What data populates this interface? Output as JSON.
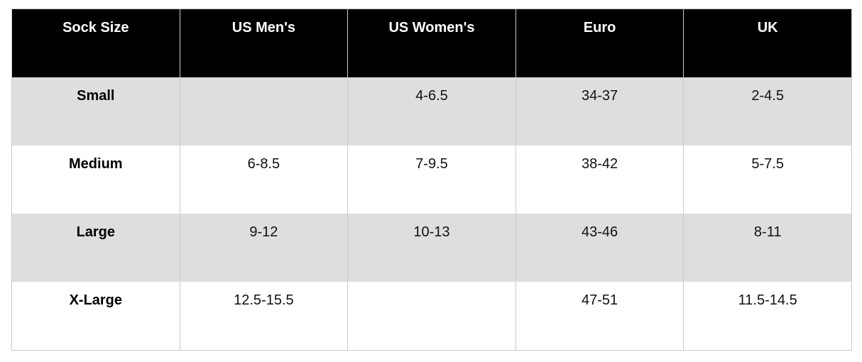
{
  "table": {
    "columns": [
      "Sock Size",
      "US Men's",
      "US Women's",
      "Euro",
      "UK"
    ],
    "rows": [
      {
        "cells": [
          "Small",
          "",
          "4-6.5",
          "34-37",
          "2-4.5"
        ]
      },
      {
        "cells": [
          "Medium",
          "6-8.5",
          "7-9.5",
          "38-42",
          "5-7.5"
        ]
      },
      {
        "cells": [
          "Large",
          "9-12",
          "10-13",
          "43-46",
          "8-11"
        ]
      },
      {
        "cells": [
          "X-Large",
          "12.5-15.5",
          "",
          "47-51",
          "11.5-14.5"
        ]
      }
    ]
  },
  "colors": {
    "header_bg": "#000000",
    "header_text": "#ffffff",
    "stripe_row_bg": "#dedede",
    "plain_row_bg": "#ffffff",
    "grid_line": "#cbcbcb",
    "body_text": "#111111"
  },
  "chart_data": {
    "type": "table",
    "title": "",
    "columns": [
      "Sock Size",
      "US Men's",
      "US Women's",
      "Euro",
      "UK"
    ],
    "rows": [
      [
        "Small",
        "",
        "4-6.5",
        "34-37",
        "2-4.5"
      ],
      [
        "Medium",
        "6-8.5",
        "7-9.5",
        "38-42",
        "5-7.5"
      ],
      [
        "Large",
        "9-12",
        "10-13",
        "43-46",
        "8-11"
      ],
      [
        "X-Large",
        "12.5-15.5",
        "",
        "47-51",
        "11.5-14.5"
      ]
    ]
  }
}
